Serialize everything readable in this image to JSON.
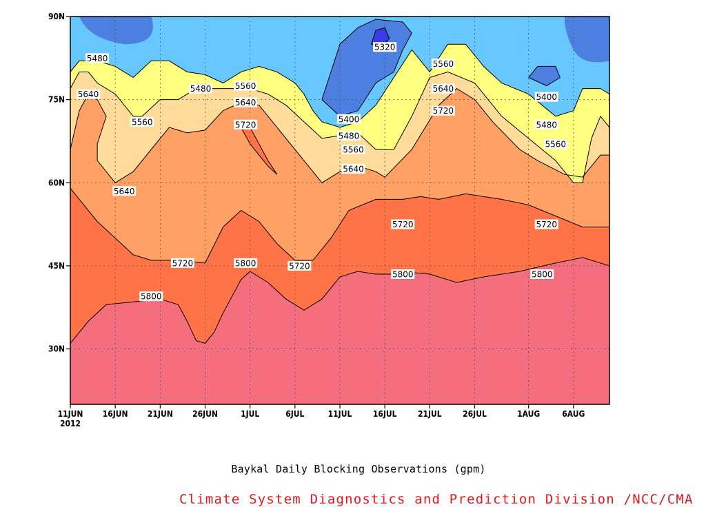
{
  "chart_data": {
    "type": "contour",
    "title": "",
    "caption": "Baykal Daily Blocking Observations (gpm)",
    "credit": "Climate System Diagnostics and Prediction Division /NCC/CMA",
    "xlabel": "",
    "ylabel": "",
    "x_axis": {
      "ticks": [
        "11JUN",
        "16JUN",
        "21JUN",
        "26JUN",
        "1JUL",
        "6JUL",
        "11JUL",
        "16JUL",
        "21JUL",
        "26JUL",
        "1AUG",
        "6AUG"
      ],
      "tick_days": [
        0,
        5,
        10,
        15,
        20,
        25,
        30,
        35,
        40,
        45,
        51,
        56
      ],
      "year_label": "2012",
      "range_days": [
        0,
        60
      ]
    },
    "y_axis": {
      "ticks": [
        "30N",
        "45N",
        "60N",
        "75N",
        "90N"
      ],
      "tick_values": [
        30,
        45,
        60,
        75,
        90
      ],
      "range": [
        20,
        90
      ]
    },
    "grid": "dotted",
    "levels": [
      5320,
      5400,
      5480,
      5560,
      5640,
      5720,
      5800
    ],
    "level_colors": {
      "below_5320": "#3a3ae6",
      "5320_5400": "#4d7fe0",
      "5400_5480": "#5a90e8",
      "5480_5560": "#66c8ff",
      "5560_5640": "#ffff80",
      "5640_5720": "#ffdc99",
      "5720_5800": "#ffa064",
      "5800_5880": "#ff7346",
      "above_5880": "#f56e7d"
    },
    "contour_lines": [
      {
        "level": 5800,
        "points": [
          [
            0,
            31
          ],
          [
            2,
            35
          ],
          [
            4,
            38
          ],
          [
            7,
            38.5
          ],
          [
            10,
            39
          ],
          [
            12,
            38
          ],
          [
            13,
            35
          ],
          [
            14,
            31.5
          ],
          [
            15,
            31
          ],
          [
            16,
            33
          ],
          [
            17,
            36.5
          ],
          [
            19,
            42.5
          ],
          [
            20,
            44
          ],
          [
            22,
            42
          ],
          [
            24,
            39
          ],
          [
            26,
            37
          ],
          [
            28,
            39
          ],
          [
            30,
            43
          ],
          [
            32,
            44
          ],
          [
            34,
            43.5
          ],
          [
            36,
            43.5
          ],
          [
            38,
            43.8
          ],
          [
            40,
            43.5
          ],
          [
            43,
            42
          ],
          [
            46,
            43
          ],
          [
            50,
            44
          ],
          [
            54,
            45.5
          ],
          [
            57,
            46.5
          ],
          [
            60,
            45
          ]
        ]
      },
      {
        "level": 5720,
        "points": [
          [
            0,
            59
          ],
          [
            3,
            53
          ],
          [
            5,
            50
          ],
          [
            7,
            47
          ],
          [
            9,
            46
          ],
          [
            12,
            46
          ],
          [
            15,
            45.5
          ],
          [
            17,
            52
          ],
          [
            19,
            55
          ],
          [
            21,
            53
          ],
          [
            23,
            49
          ],
          [
            25,
            46
          ],
          [
            27,
            46
          ],
          [
            29,
            50
          ],
          [
            31,
            55
          ],
          [
            34,
            57
          ],
          [
            37,
            57
          ],
          [
            39,
            57.5
          ],
          [
            41,
            57
          ],
          [
            44,
            58
          ],
          [
            48,
            57
          ],
          [
            51,
            56
          ],
          [
            54,
            54
          ],
          [
            57,
            52
          ],
          [
            60,
            52
          ]
        ]
      },
      {
        "level": 5640,
        "points": [
          [
            0,
            66
          ],
          [
            1,
            73
          ],
          [
            2,
            76
          ],
          [
            3,
            75
          ],
          [
            4,
            72
          ],
          [
            3,
            67
          ],
          [
            3,
            64
          ],
          [
            5,
            60
          ],
          [
            7,
            62
          ],
          [
            9,
            66
          ],
          [
            11,
            70
          ],
          [
            13,
            69
          ],
          [
            15,
            69.5
          ],
          [
            17,
            73
          ],
          [
            19,
            74.5
          ],
          [
            21,
            74
          ],
          [
            23,
            70
          ],
          [
            25,
            66
          ],
          [
            27,
            62
          ],
          [
            28,
            60
          ],
          [
            30,
            62
          ],
          [
            32,
            63
          ],
          [
            34,
            62
          ],
          [
            35,
            61
          ],
          [
            38,
            66
          ],
          [
            41,
            74
          ],
          [
            43,
            77
          ],
          [
            45,
            75
          ],
          [
            47,
            71
          ],
          [
            50,
            66
          ],
          [
            52,
            64
          ],
          [
            55,
            61.5
          ],
          [
            57,
            61
          ],
          [
            58,
            63
          ],
          [
            59,
            65
          ],
          [
            60,
            65
          ]
        ]
      },
      {
        "level": 5560,
        "points": [
          [
            0,
            77
          ],
          [
            1,
            80
          ],
          [
            2,
            80
          ],
          [
            3,
            78
          ],
          [
            5,
            76
          ],
          [
            7,
            72
          ],
          [
            8,
            72
          ],
          [
            10,
            75
          ],
          [
            12,
            75
          ],
          [
            14,
            77
          ],
          [
            16,
            77
          ],
          [
            18,
            77
          ],
          [
            20,
            77
          ],
          [
            22,
            76
          ],
          [
            24,
            74
          ],
          [
            26,
            71
          ],
          [
            28,
            68
          ],
          [
            30,
            68.5
          ],
          [
            32,
            69
          ],
          [
            34,
            66
          ],
          [
            36,
            66
          ],
          [
            38,
            72
          ],
          [
            40,
            79
          ],
          [
            42,
            80
          ],
          [
            45,
            78
          ],
          [
            48,
            72
          ],
          [
            51,
            68
          ],
          [
            54,
            64
          ],
          [
            56,
            60
          ],
          [
            57,
            60
          ],
          [
            58,
            68
          ],
          [
            59,
            72
          ],
          [
            60,
            70
          ]
        ]
      },
      {
        "level": 5480,
        "points": [
          [
            0,
            80
          ],
          [
            1,
            82
          ],
          [
            3,
            82
          ],
          [
            5,
            81
          ],
          [
            7,
            79
          ],
          [
            9,
            82
          ],
          [
            11,
            82
          ],
          [
            13,
            80
          ],
          [
            15,
            79.5
          ],
          [
            17,
            78
          ],
          [
            19,
            80
          ],
          [
            21,
            81
          ],
          [
            23,
            80
          ],
          [
            25,
            78
          ],
          [
            26,
            76
          ],
          [
            27,
            73
          ],
          [
            28,
            71
          ],
          [
            30,
            70
          ],
          [
            32,
            71
          ],
          [
            34,
            74
          ],
          [
            36,
            79
          ],
          [
            38,
            84
          ],
          [
            40,
            80
          ],
          [
            42,
            85
          ],
          [
            44,
            85
          ],
          [
            46,
            81
          ],
          [
            48,
            78
          ],
          [
            51,
            76
          ],
          [
            54,
            72
          ],
          [
            56,
            73
          ],
          [
            57,
            77
          ],
          [
            59,
            77
          ],
          [
            60,
            76
          ]
        ]
      },
      {
        "level": 5400,
        "points": [
          [
            28,
            75
          ],
          [
            30,
            72
          ],
          [
            32,
            73
          ],
          [
            34,
            78
          ],
          [
            36,
            80
          ],
          [
            37,
            84
          ],
          [
            38,
            87
          ],
          [
            37,
            89
          ],
          [
            34,
            89.5
          ],
          [
            32,
            88
          ],
          [
            30,
            85
          ],
          [
            29,
            80
          ],
          [
            28,
            75
          ]
        ]
      },
      {
        "level": 5320,
        "points": [
          [
            33.5,
            85
          ],
          [
            34,
            87.5
          ],
          [
            35,
            88
          ],
          [
            35.5,
            86
          ],
          [
            34.5,
            84.5
          ],
          [
            33.5,
            85
          ]
        ]
      },
      {
        "level": 5400,
        "points": [
          [
            51,
            79
          ],
          [
            52,
            81
          ],
          [
            54,
            81
          ],
          [
            54.5,
            79
          ],
          [
            53,
            77.5
          ],
          [
            51,
            79
          ]
        ]
      },
      {
        "level": 5720,
        "points": [
          [
            19,
            70
          ],
          [
            20,
            67
          ],
          [
            22,
            63
          ],
          [
            23,
            61.5
          ],
          [
            22,
            64
          ],
          [
            21,
            67
          ],
          [
            20,
            70
          ],
          [
            19,
            70
          ]
        ]
      }
    ],
    "contour_labels": [
      {
        "text": "5480",
        "day": 3,
        "lat": 82.5
      },
      {
        "text": "5640",
        "day": 2,
        "lat": 76
      },
      {
        "text": "5560",
        "day": 8,
        "lat": 71
      },
      {
        "text": "5640",
        "day": 6,
        "lat": 58.5
      },
      {
        "text": "5480",
        "day": 14.5,
        "lat": 77
      },
      {
        "text": "5560",
        "day": 19.5,
        "lat": 77.5
      },
      {
        "text": "5640",
        "day": 19.5,
        "lat": 74.5
      },
      {
        "text": "5720",
        "day": 19.5,
        "lat": 70.5
      },
      {
        "text": "5400",
        "day": 31,
        "lat": 71.5
      },
      {
        "text": "5480",
        "day": 31,
        "lat": 68.5
      },
      {
        "text": "5560",
        "day": 31.5,
        "lat": 66
      },
      {
        "text": "5640",
        "day": 31.5,
        "lat": 62.5
      },
      {
        "text": "5320",
        "day": 35,
        "lat": 84.5
      },
      {
        "text": "5560",
        "day": 41.5,
        "lat": 81.5
      },
      {
        "text": "5640",
        "day": 41.5,
        "lat": 77
      },
      {
        "text": "5720",
        "day": 41.5,
        "lat": 73
      },
      {
        "text": "5400",
        "day": 53,
        "lat": 75.5
      },
      {
        "text": "5480",
        "day": 53,
        "lat": 70.5
      },
      {
        "text": "5560",
        "day": 54,
        "lat": 67
      },
      {
        "text": "5720",
        "day": 37,
        "lat": 52.5
      },
      {
        "text": "5720",
        "day": 53,
        "lat": 52.5
      },
      {
        "text": "5720",
        "day": 12.5,
        "lat": 45.5
      },
      {
        "text": "5720",
        "day": 25.5,
        "lat": 45
      },
      {
        "text": "5800",
        "day": 9,
        "lat": 39.5
      },
      {
        "text": "5800",
        "day": 19.5,
        "lat": 45.5
      },
      {
        "text": "5800",
        "day": 37,
        "lat": 43.5
      },
      {
        "text": "5800",
        "day": 52.5,
        "lat": 43.5
      }
    ]
  }
}
